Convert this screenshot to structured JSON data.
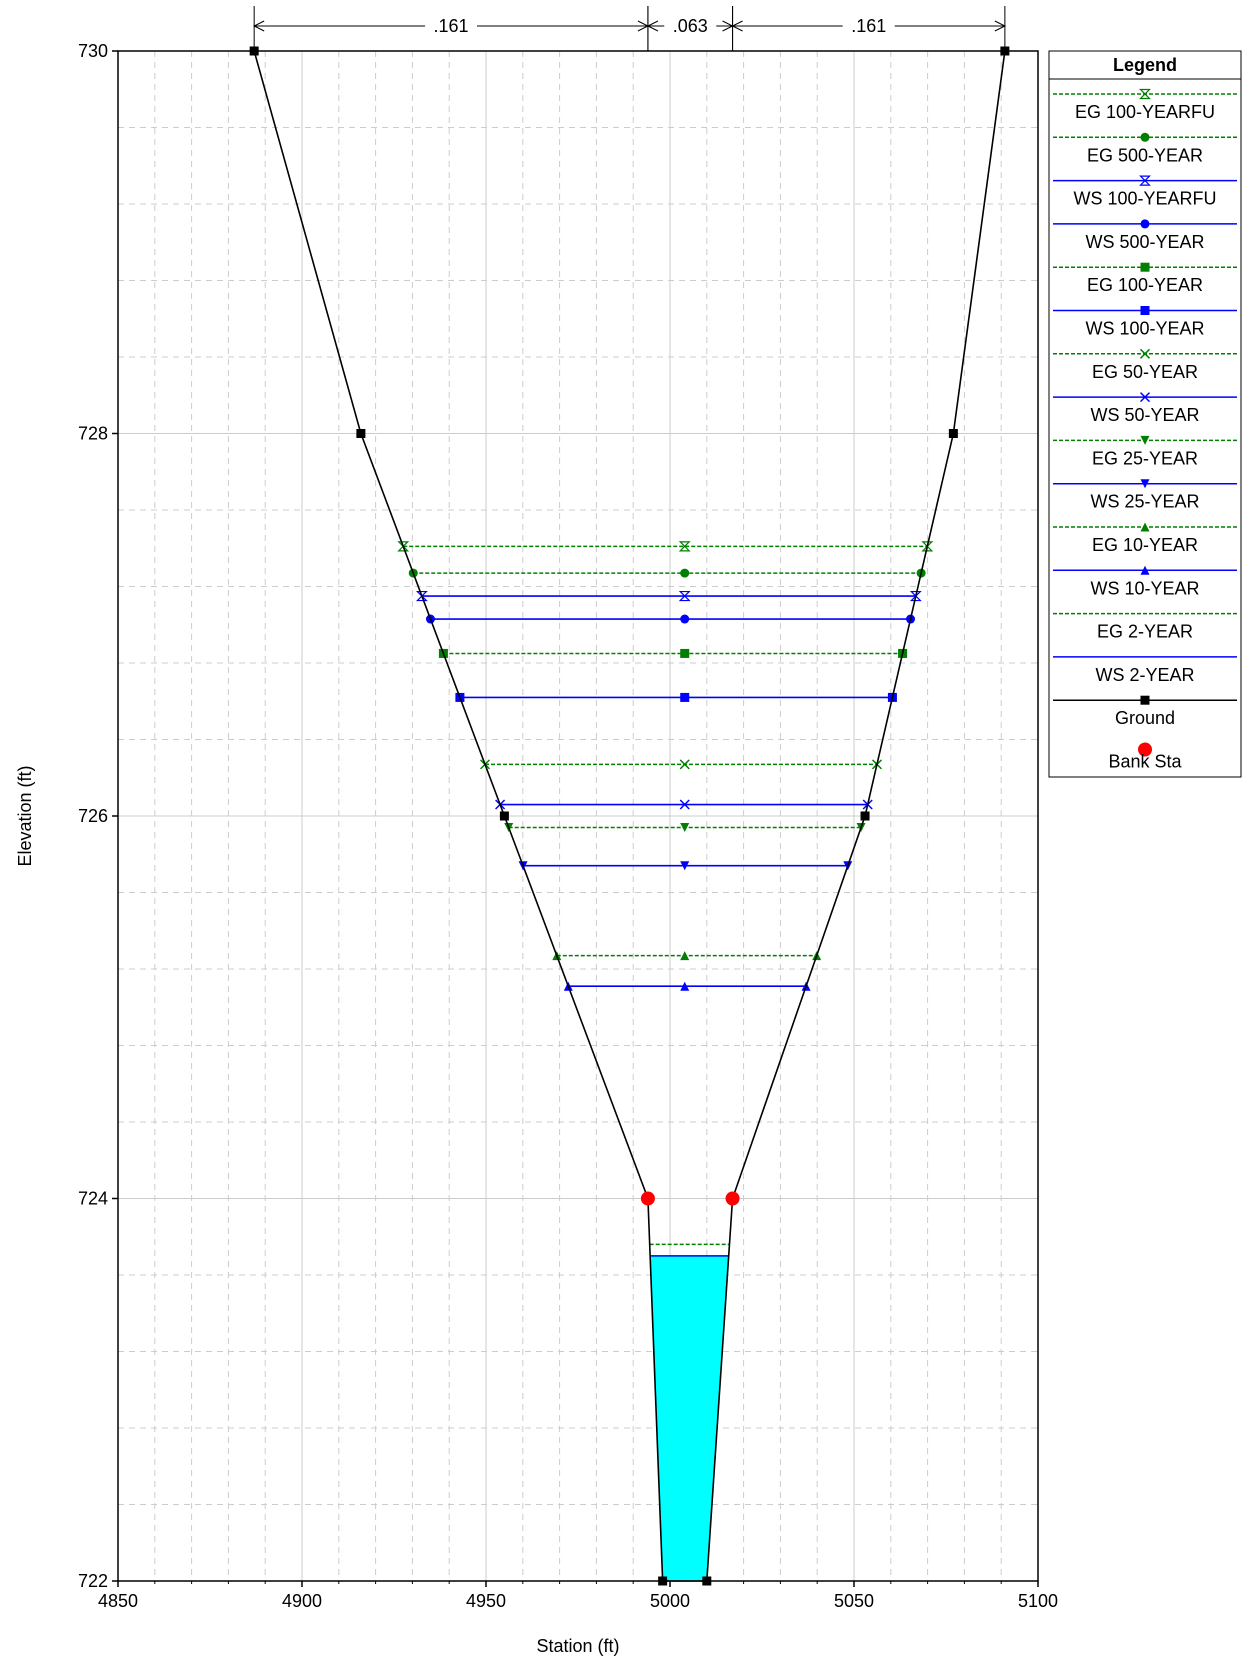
{
  "chart_data": {
    "type": "line",
    "title": "",
    "xlabel": "Station (ft)",
    "ylabel": "Elevation (ft)",
    "xlim": [
      4850,
      5100
    ],
    "ylim": [
      722,
      730
    ],
    "x_ticks": [
      4850,
      4900,
      4950,
      5000,
      5050,
      5100
    ],
    "y_ticks": [
      722,
      724,
      726,
      728,
      730
    ],
    "grid": "major solid, minor dashed",
    "legend_title": "Legend",
    "legend_position": "right",
    "manning_n": [
      {
        "label": ".161",
        "from": 4887,
        "to": 4994
      },
      {
        "label": ".063",
        "from": 4994,
        "to": 5017
      },
      {
        "label": ".161",
        "from": 5017,
        "to": 5091
      }
    ],
    "ground": {
      "name": "Ground",
      "color": "#000000",
      "x": [
        4887,
        4916,
        4955,
        4994,
        4998,
        5010,
        5017,
        5053,
        5077,
        5091
      ],
      "y": [
        730.0,
        728.0,
        726.0,
        724.0,
        722.0,
        722.0,
        724.0,
        726.0,
        728.0,
        730.0
      ],
      "markers_at": [
        0,
        1,
        2,
        4,
        5,
        7,
        8,
        9
      ]
    },
    "bank_sta": {
      "name": "Bank Sta",
      "color": "#ff0000",
      "x": [
        4994,
        5017
      ],
      "y": [
        724.0,
        724.0
      ]
    },
    "water_fill": {
      "color": "#00ffff",
      "elevation": 723.7
    },
    "series": [
      {
        "name": "EG 100-YEARFU",
        "elevation": 727.41,
        "color": "#008000",
        "dashed": true,
        "marker": "hourglass"
      },
      {
        "name": "EG 500-YEAR",
        "elevation": 727.27,
        "color": "#008000",
        "dashed": true,
        "marker": "circle"
      },
      {
        "name": "WS 100-YEARFU",
        "elevation": 727.15,
        "color": "#0000ff",
        "dashed": false,
        "marker": "hourglass"
      },
      {
        "name": "WS 500-YEAR",
        "elevation": 727.03,
        "color": "#0000ff",
        "dashed": false,
        "marker": "circle"
      },
      {
        "name": "EG 100-YEAR",
        "elevation": 726.85,
        "color": "#008000",
        "dashed": true,
        "marker": "square"
      },
      {
        "name": "WS 100-YEAR",
        "elevation": 726.62,
        "color": "#0000ff",
        "dashed": false,
        "marker": "square"
      },
      {
        "name": "EG 50-YEAR",
        "elevation": 726.27,
        "color": "#008000",
        "dashed": true,
        "marker": "x"
      },
      {
        "name": "WS 50-YEAR",
        "elevation": 726.06,
        "color": "#0000ff",
        "dashed": false,
        "marker": "x"
      },
      {
        "name": "EG 25-YEAR",
        "elevation": 725.94,
        "color": "#008000",
        "dashed": true,
        "marker": "triangle-down"
      },
      {
        "name": "WS 25-YEAR",
        "elevation": 725.74,
        "color": "#0000ff",
        "dashed": false,
        "marker": "triangle-down"
      },
      {
        "name": "EG 10-YEAR",
        "elevation": 725.27,
        "color": "#008000",
        "dashed": true,
        "marker": "triangle-up"
      },
      {
        "name": "WS 10-YEAR",
        "elevation": 725.11,
        "color": "#0000ff",
        "dashed": false,
        "marker": "triangle-up"
      },
      {
        "name": "EG 2-YEAR",
        "elevation": 723.76,
        "color": "#008000",
        "dashed": true,
        "marker": "none"
      },
      {
        "name": "WS 2-YEAR",
        "elevation": 723.7,
        "color": "#0000ff",
        "dashed": false,
        "marker": "none"
      }
    ]
  }
}
